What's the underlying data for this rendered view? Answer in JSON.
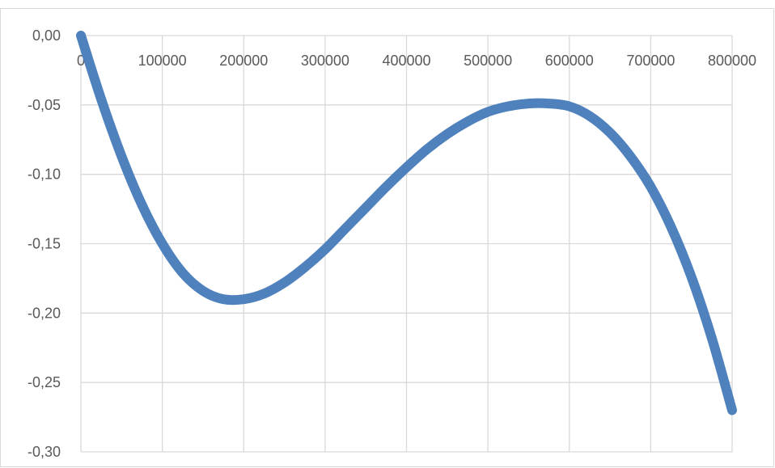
{
  "chart_data": {
    "type": "line",
    "title": "",
    "xlabel": "",
    "ylabel": "",
    "xlim": [
      0,
      800000
    ],
    "ylim": [
      -0.3,
      0.0
    ],
    "x_ticks": [
      0,
      100000,
      200000,
      300000,
      400000,
      500000,
      600000,
      700000,
      800000
    ],
    "x_tick_labels": [
      "0",
      "100000",
      "200000",
      "300000",
      "400000",
      "500000",
      "600000",
      "700000",
      "800000"
    ],
    "y_ticks": [
      0.0,
      -0.05,
      -0.1,
      -0.15,
      -0.2,
      -0.25,
      -0.3
    ],
    "y_tick_labels": [
      "0,00",
      "-0,05",
      "-0,10",
      "-0,15",
      "-0,20",
      "-0,25",
      "-0,30"
    ],
    "grid": true,
    "legend": "none",
    "series": [
      {
        "color": "#4f81bd",
        "x": [
          0,
          25000,
          50000,
          75000,
          100000,
          125000,
          150000,
          175000,
          200000,
          225000,
          250000,
          275000,
          300000,
          325000,
          350000,
          375000,
          400000,
          425000,
          450000,
          475000,
          500000,
          525000,
          550000,
          575000,
          600000,
          625000,
          650000,
          675000,
          700000,
          725000,
          750000,
          775000,
          800000
        ],
        "y": [
          0.0,
          -0.046,
          -0.087,
          -0.122,
          -0.15,
          -0.171,
          -0.184,
          -0.19,
          -0.19,
          -0.186,
          -0.178,
          -0.167,
          -0.154,
          -0.139,
          -0.124,
          -0.109,
          -0.095,
          -0.082,
          -0.071,
          -0.062,
          -0.055,
          -0.051,
          -0.049,
          -0.049,
          -0.051,
          -0.058,
          -0.07,
          -0.087,
          -0.109,
          -0.138,
          -0.174,
          -0.218,
          -0.27
        ]
      }
    ]
  }
}
